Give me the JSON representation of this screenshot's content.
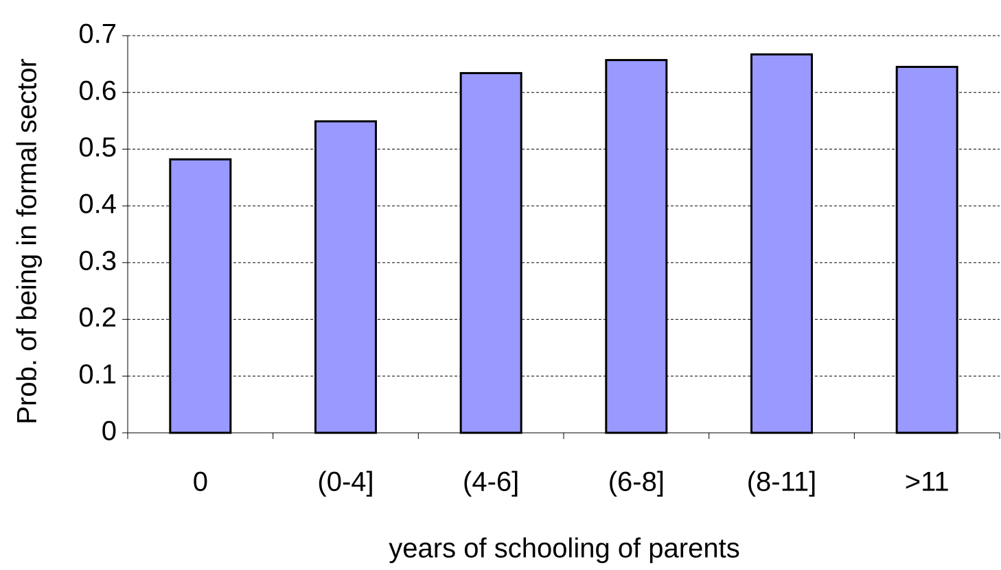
{
  "chart_data": {
    "type": "bar",
    "x_label": "years of schooling of parents",
    "y_label": "Prob. of being in formal sector",
    "categories": [
      "0",
      "(0-4]",
      "(4-6]",
      "(6-8]",
      "(8-11]",
      ">11"
    ],
    "values": [
      0.482,
      0.549,
      0.634,
      0.657,
      0.667,
      0.645
    ],
    "color": "#9999ff",
    "ylim": [
      0,
      0.7
    ],
    "yticks": [
      0,
      0.1,
      0.2,
      0.3,
      0.4,
      0.5,
      0.6,
      0.7
    ],
    "grid": true
  }
}
